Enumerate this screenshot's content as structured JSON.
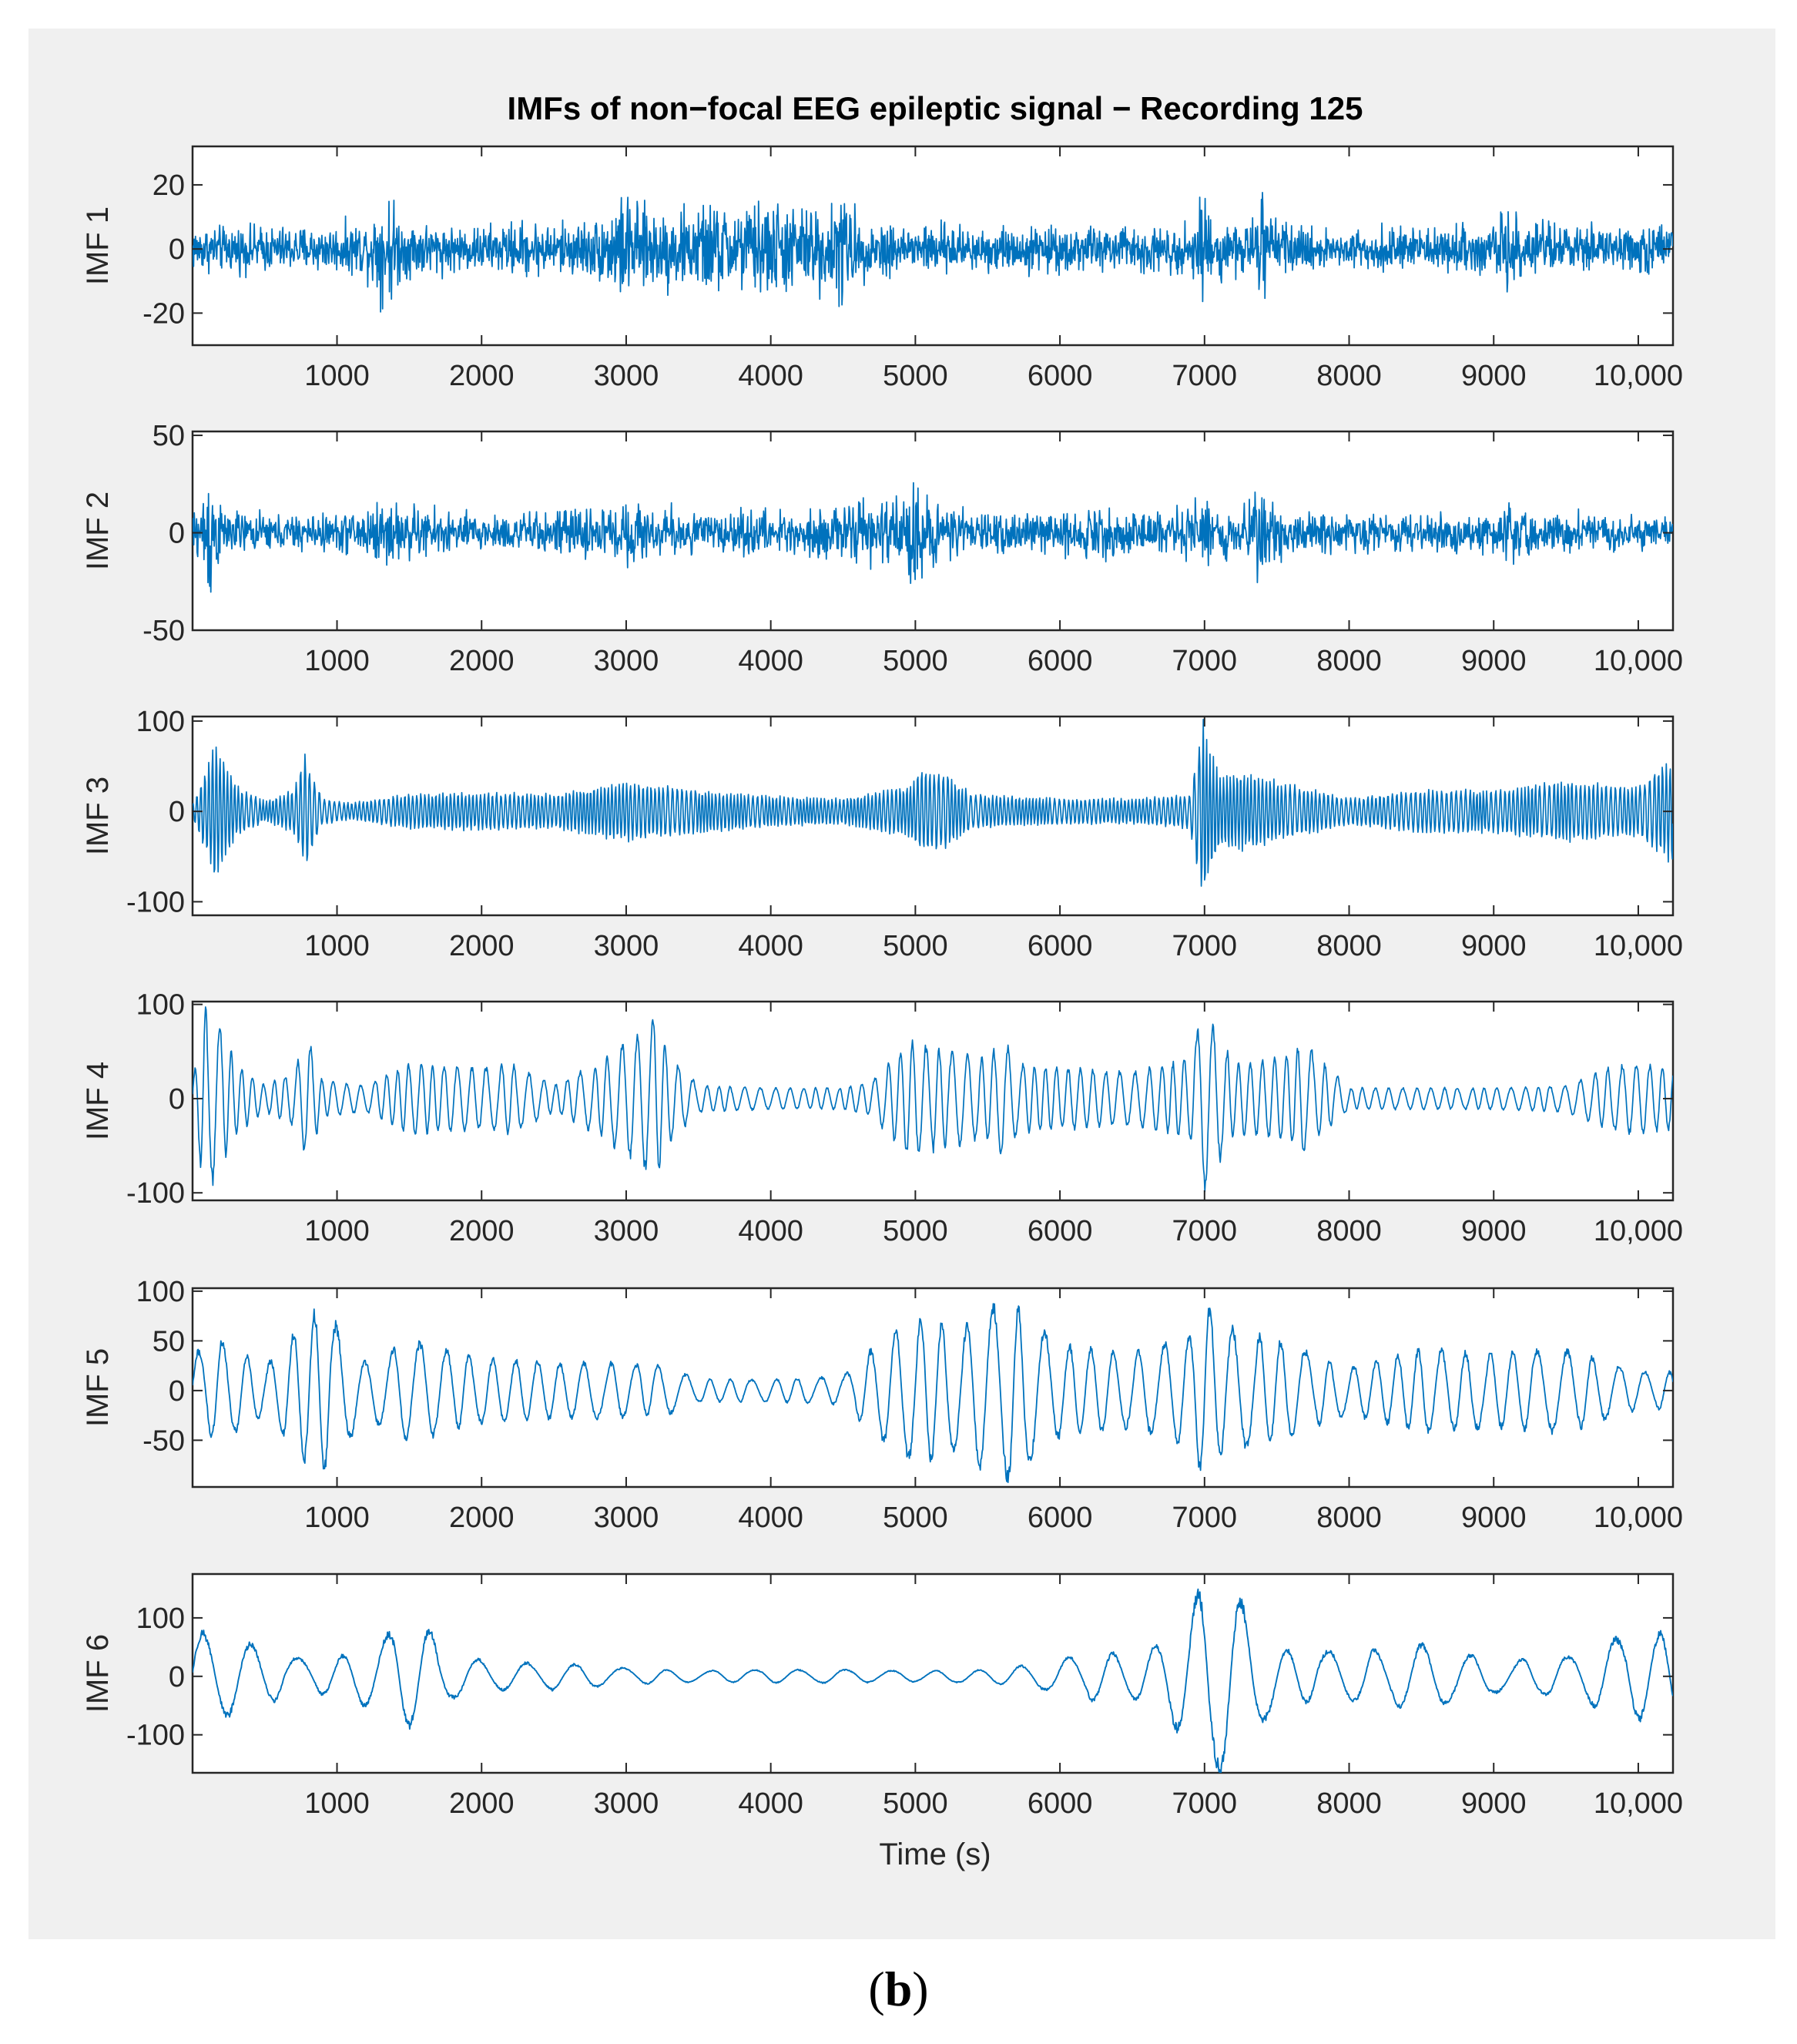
{
  "chart_data": {
    "type": "line",
    "title": "IMFs of non−focal EEG epileptic signal − Recording 125",
    "xlabel": "Time (s)",
    "xlim": [
      1,
      10240
    ],
    "x_ticks": [
      1000,
      2000,
      3000,
      4000,
      5000,
      6000,
      7000,
      8000,
      9000,
      10000
    ],
    "x_tick_labels": [
      "1000",
      "2000",
      "3000",
      "4000",
      "5000",
      "6000",
      "7000",
      "8000",
      "9000",
      "10,000"
    ],
    "grid": false,
    "line_color": "#0072bd",
    "subplots": [
      {
        "name": "IMF 1",
        "ylabel": "IMF 1",
        "ylim": [
          -30,
          32
        ],
        "y_ticks": [
          -20,
          0,
          20
        ],
        "y_tick_labels": [
          "-20",
          "0",
          "20"
        ],
        "envelope": {
          "x": [
            0,
            500,
            1000,
            1200,
            1300,
            1350,
            1450,
            1800,
            2000,
            2300,
            2500,
            2800,
            2950,
            3000,
            3100,
            3400,
            3600,
            3800,
            4000,
            4200,
            4400,
            4500,
            4600,
            5000,
            5500,
            6000,
            6500,
            6900,
            7000,
            7050,
            7200,
            7370,
            7400,
            7430,
            7700,
            8000,
            8500,
            9000,
            9050,
            9200,
            9600,
            10000,
            10240
          ],
          "amp": [
            9,
            9,
            9,
            11,
            20,
            24,
            12,
            9,
            9,
            11,
            10,
            12,
            20,
            22,
            16,
            16,
            18,
            17,
            20,
            17,
            17,
            25,
            12,
            10,
            9,
            9,
            9,
            10,
            23,
            12,
            10,
            12,
            32,
            12,
            8,
            8,
            8,
            10,
            20,
            10,
            9,
            9,
            11
          ]
        }
      },
      {
        "name": "IMF 2",
        "ylabel": "IMF 2",
        "ylim": [
          -50,
          52
        ],
        "y_ticks": [
          -50,
          0,
          50
        ],
        "y_tick_labels": [
          "-50",
          "0",
          "50"
        ],
        "envelope": {
          "x": [
            0,
            60,
            100,
            130,
            200,
            500,
            1000,
            1300,
            1500,
            2000,
            2500,
            3000,
            3500,
            4000,
            4500,
            4950,
            5000,
            5050,
            5300,
            5600,
            6000,
            6300,
            6500,
            6950,
            7000,
            7050,
            7200,
            7400,
            7600,
            8000,
            8500,
            9000,
            9200,
            9400,
            9800,
            10240
          ],
          "amp": [
            12,
            25,
            48,
            50,
            15,
            12,
            12,
            22,
            18,
            12,
            14,
            20,
            14,
            14,
            17,
            26,
            42,
            24,
            14,
            14,
            13,
            17,
            12,
            20,
            32,
            18,
            14,
            28,
            14,
            12,
            12,
            14,
            22,
            13,
            12,
            12
          ]
        }
      },
      {
        "name": "IMF 3",
        "ylabel": "IMF 3",
        "ylim": [
          -115,
          105
        ],
        "y_ticks": [
          -100,
          0,
          100
        ],
        "y_tick_labels": [
          "-100",
          "0",
          "100"
        ],
        "envelope": {
          "x": [
            0,
            100,
            150,
            300,
            500,
            700,
            780,
            900,
            1100,
            1500,
            2000,
            2500,
            3000,
            3500,
            4000,
            4500,
            4950,
            5050,
            5200,
            5400,
            6000,
            6500,
            6900,
            6990,
            7020,
            7100,
            7300,
            7500,
            8000,
            8500,
            9000,
            9500,
            10000,
            10180,
            10240
          ],
          "amp": [
            8,
            50,
            85,
            30,
            12,
            25,
            65,
            15,
            10,
            20,
            22,
            20,
            35,
            25,
            18,
            15,
            30,
            50,
            45,
            20,
            15,
            15,
            20,
            110,
            85,
            45,
            45,
            35,
            15,
            25,
            25,
            35,
            28,
            55,
            60
          ]
        }
      },
      {
        "name": "IMF 4",
        "ylabel": "IMF 4",
        "ylim": [
          -108,
          103
        ],
        "y_ticks": [
          -100,
          0,
          100
        ],
        "y_tick_labels": [
          "-100",
          "0",
          "100"
        ],
        "envelope": {
          "x": [
            0,
            80,
            150,
            300,
            500,
            700,
            800,
            900,
            1200,
            1500,
            2000,
            2200,
            2500,
            2800,
            3100,
            3200,
            3300,
            3500,
            4000,
            4500,
            4700,
            4950,
            5200,
            5500,
            5600,
            5700,
            6000,
            6500,
            6900,
            6990,
            7040,
            7200,
            7500,
            7700,
            8000,
            8500,
            9000,
            9500,
            9800,
            10000,
            10240
          ],
          "amp": [
            15,
            100,
            95,
            40,
            15,
            30,
            70,
            20,
            15,
            40,
            35,
            40,
            15,
            40,
            75,
            90,
            50,
            15,
            12,
            12,
            20,
            65,
            55,
            45,
            70,
            40,
            35,
            30,
            45,
            105,
            90,
            40,
            45,
            60,
            12,
            12,
            12,
            15,
            35,
            40,
            35
          ]
        }
      },
      {
        "name": "IMF 5",
        "ylabel": "IMF 5",
        "ylim": [
          -97,
          103
        ],
        "y_ticks": [
          -50,
          0,
          50,
          100
        ],
        "y_tick_labels": [
          "-50",
          "0",
          "50",
          "100"
        ],
        "envelope": {
          "x": [
            0,
            200,
            500,
            800,
            900,
            1000,
            1200,
            1500,
            2000,
            2500,
            3000,
            3300,
            3500,
            4000,
            4500,
            4700,
            5000,
            5300,
            5600,
            5700,
            6000,
            6500,
            6900,
            7000,
            7100,
            7500,
            8000,
            8500,
            9000,
            9500,
            10000,
            10240
          ],
          "amp": [
            40,
            55,
            25,
            80,
            90,
            70,
            30,
            55,
            35,
            30,
            30,
            25,
            12,
            12,
            15,
            45,
            80,
            65,
            100,
            90,
            50,
            40,
            60,
            100,
            70,
            55,
            25,
            45,
            40,
            45,
            20,
            20
          ]
        }
      },
      {
        "name": "IMF 6",
        "ylabel": "IMF 6",
        "ylim": [
          -165,
          175
        ],
        "y_ticks": [
          -100,
          0,
          100
        ],
        "y_tick_labels": [
          "-100",
          "0",
          "100"
        ],
        "envelope": {
          "x": [
            0,
            100,
            300,
            500,
            800,
            1100,
            1300,
            1450,
            1600,
            1800,
            2100,
            2500,
            3000,
            3500,
            4000,
            4500,
            5000,
            5500,
            5900,
            6200,
            6500,
            6700,
            6900,
            7000,
            7150,
            7300,
            7500,
            8000,
            8500,
            9000,
            9500,
            9800,
            10000,
            10240
          ],
          "amp": [
            85,
            80,
            70,
            50,
            30,
            40,
            70,
            90,
            95,
            40,
            25,
            25,
            15,
            10,
            12,
            12,
            10,
            12,
            25,
            45,
            40,
            60,
            130,
            170,
            175,
            120,
            50,
            45,
            60,
            30,
            35,
            65,
            80,
            80
          ]
        }
      }
    ]
  }
}
